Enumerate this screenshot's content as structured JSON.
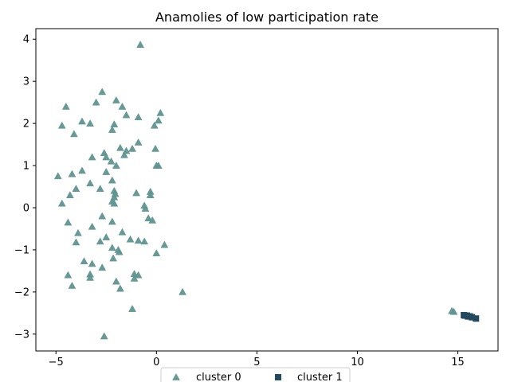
{
  "chart_data": {
    "type": "scatter",
    "title": "Anamolies of low participation rate",
    "xlabel": "",
    "ylabel": "",
    "xlim": [
      -6,
      17
    ],
    "ylim": [
      -3.4,
      4.25
    ],
    "xticks": [
      -5,
      0,
      5,
      10,
      15
    ],
    "xtick_labels": [
      "−5",
      "0",
      "5",
      "10",
      "15"
    ],
    "yticks": [
      -3,
      -2,
      -1,
      0,
      1,
      2,
      3,
      4
    ],
    "ytick_labels": [
      "−3",
      "−2",
      "−1",
      "0",
      "1",
      "2",
      "3",
      "4"
    ],
    "grid": false,
    "legend_position": "bottom-center",
    "series": [
      {
        "name": "cluster 0",
        "marker": "triangle",
        "color": "#5f9490",
        "points": [
          [
            -0.8,
            3.87
          ],
          [
            -2.7,
            2.75
          ],
          [
            -2.0,
            2.55
          ],
          [
            -4.5,
            2.4
          ],
          [
            -3.0,
            2.5
          ],
          [
            -1.7,
            2.4
          ],
          [
            0.2,
            2.25
          ],
          [
            -1.5,
            2.2
          ],
          [
            -0.9,
            2.15
          ],
          [
            -3.7,
            2.05
          ],
          [
            0.1,
            2.07
          ],
          [
            -4.7,
            1.95
          ],
          [
            -3.3,
            2.0
          ],
          [
            -2.1,
            1.98
          ],
          [
            -0.1,
            1.95
          ],
          [
            -2.2,
            1.85
          ],
          [
            -4.1,
            1.75
          ],
          [
            -0.9,
            1.55
          ],
          [
            -1.8,
            1.42
          ],
          [
            -1.2,
            1.4
          ],
          [
            -0.05,
            1.4
          ],
          [
            -1.5,
            1.35
          ],
          [
            -2.6,
            1.3
          ],
          [
            -1.6,
            1.25
          ],
          [
            -2.5,
            1.2
          ],
          [
            -3.2,
            1.2
          ],
          [
            -2.25,
            1.1
          ],
          [
            -2.0,
            1.0
          ],
          [
            0.0,
            1.0
          ],
          [
            0.1,
            1.0
          ],
          [
            -3.7,
            0.88
          ],
          [
            -2.5,
            0.85
          ],
          [
            -4.2,
            0.8
          ],
          [
            -4.9,
            0.75
          ],
          [
            -2.2,
            0.65
          ],
          [
            -3.3,
            0.58
          ],
          [
            -4.0,
            0.45
          ],
          [
            -2.8,
            0.45
          ],
          [
            -2.1,
            0.4
          ],
          [
            -1.0,
            0.35
          ],
          [
            -0.3,
            0.38
          ],
          [
            -2.05,
            0.33
          ],
          [
            -0.3,
            0.3
          ],
          [
            -4.3,
            0.3
          ],
          [
            -2.1,
            0.25
          ],
          [
            -2.2,
            0.15
          ],
          [
            -2.1,
            0.1
          ],
          [
            -4.7,
            0.1
          ],
          [
            -0.6,
            0.05
          ],
          [
            -0.55,
            -0.02
          ],
          [
            -2.7,
            -0.2
          ],
          [
            -0.4,
            -0.25
          ],
          [
            -0.2,
            -0.3
          ],
          [
            -2.2,
            -0.33
          ],
          [
            -4.4,
            -0.35
          ],
          [
            -3.2,
            -0.45
          ],
          [
            -1.7,
            -0.58
          ],
          [
            -3.9,
            -0.6
          ],
          [
            -2.5,
            -0.7
          ],
          [
            -1.3,
            -0.75
          ],
          [
            -0.9,
            -0.78
          ],
          [
            -0.6,
            -0.8
          ],
          [
            -2.8,
            -0.8
          ],
          [
            -4.0,
            -0.82
          ],
          [
            0.4,
            -0.88
          ],
          [
            -2.2,
            -0.95
          ],
          [
            -1.9,
            -1.0
          ],
          [
            -1.85,
            -1.05
          ],
          [
            0.0,
            -1.08
          ],
          [
            -2.15,
            -1.2
          ],
          [
            -3.6,
            -1.27
          ],
          [
            -3.2,
            -1.33
          ],
          [
            -2.7,
            -1.42
          ],
          [
            -1.1,
            -1.57
          ],
          [
            -0.9,
            -1.6
          ],
          [
            -4.4,
            -1.6
          ],
          [
            -3.3,
            -1.58
          ],
          [
            -3.3,
            -1.66
          ],
          [
            -1.1,
            -1.68
          ],
          [
            -2.0,
            -1.75
          ],
          [
            -4.2,
            -1.85
          ],
          [
            -1.8,
            -1.92
          ],
          [
            1.3,
            -2.0
          ],
          [
            -1.2,
            -2.4
          ],
          [
            -2.6,
            -3.05
          ],
          [
            14.7,
            -2.45
          ],
          [
            14.8,
            -2.47
          ]
        ]
      },
      {
        "name": "cluster 1",
        "marker": "square",
        "color": "#23495f",
        "points": [
          [
            15.3,
            -2.55
          ],
          [
            15.35,
            -2.56
          ],
          [
            15.45,
            -2.56
          ],
          [
            15.5,
            -2.58
          ],
          [
            15.6,
            -2.58
          ],
          [
            15.7,
            -2.6
          ],
          [
            15.9,
            -2.63
          ]
        ]
      }
    ]
  }
}
